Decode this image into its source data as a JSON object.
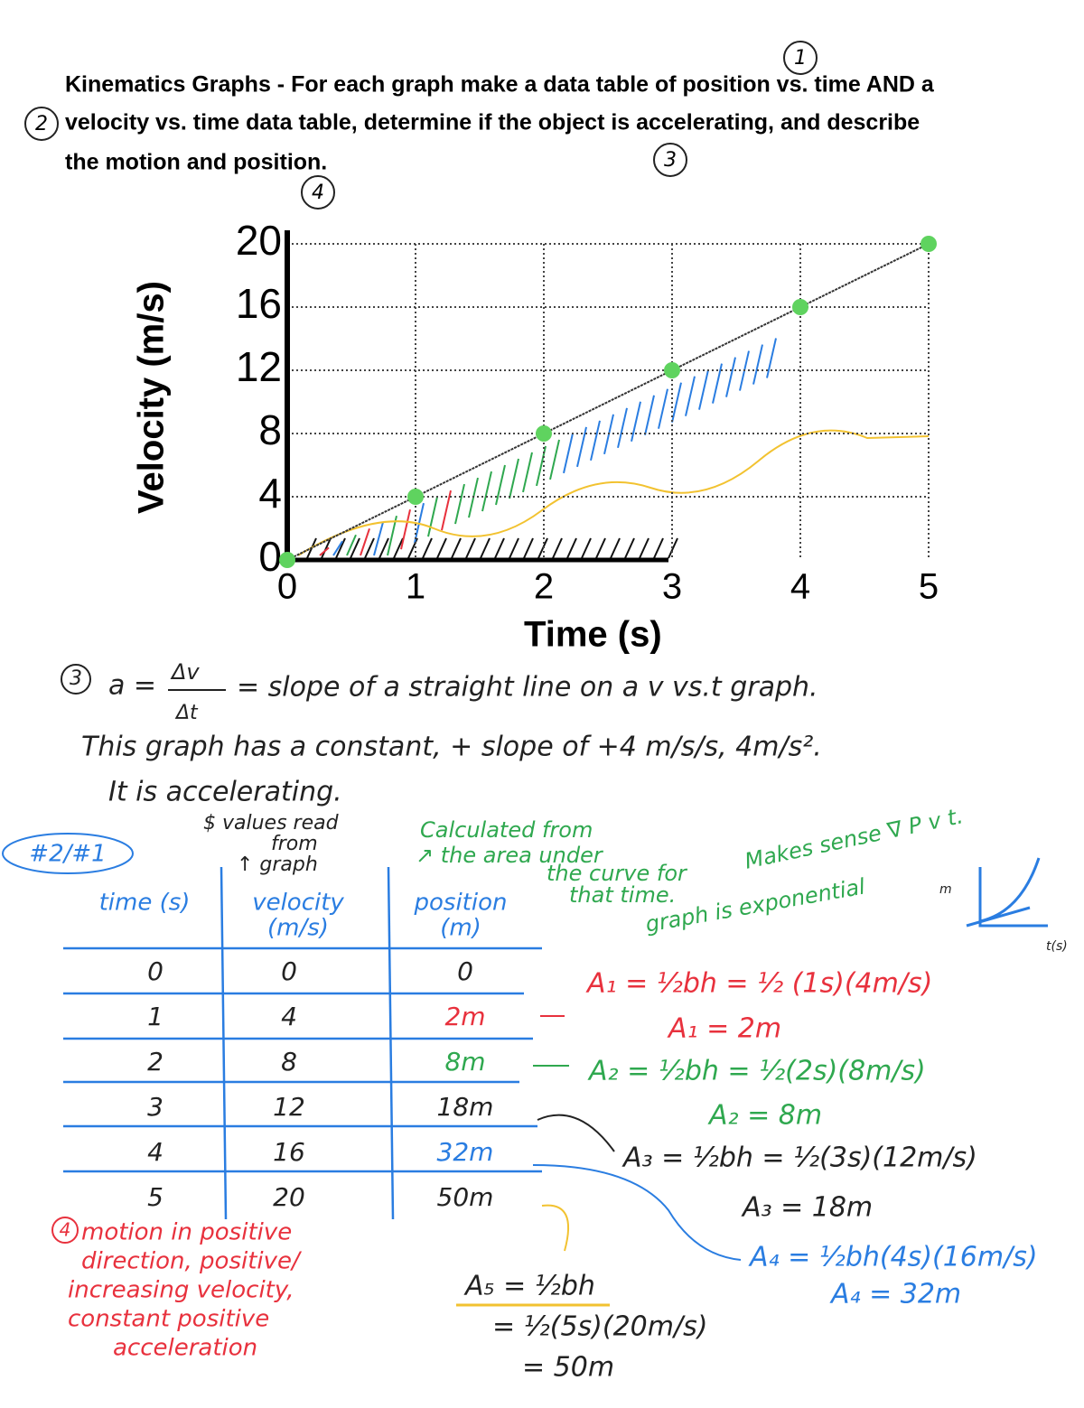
{
  "header": {
    "title_lines": [
      "Kinematics Graphs - For each graph make a data table of position vs. time AND a",
      "velocity vs. time data table, determine if the object is accelerating, and describe",
      "the motion and position."
    ],
    "circled": [
      "1",
      "2",
      "3",
      "4"
    ]
  },
  "chart_data": {
    "type": "line",
    "x_label": "Time (s)",
    "y_label": "Velocity (m/s)",
    "x": [
      0,
      1,
      2,
      3,
      4,
      5
    ],
    "values": [
      0,
      4,
      8,
      12,
      16,
      20
    ],
    "color": "#333333",
    "marker_color": "#5fd35f",
    "xlim": [
      0,
      5
    ],
    "ylim": [
      0,
      20
    ],
    "xticks": [
      0,
      1,
      2,
      3,
      4,
      5
    ],
    "yticks": [
      0,
      4,
      8,
      12,
      16,
      20
    ],
    "grid": true
  },
  "notes": {
    "eq_number": "3",
    "a_eq": "a =",
    "dv": "Δv",
    "dt": "Δt",
    "eq_rest": "= slope of a straight line on a v vs.t graph.",
    "line2": "This graph has a constant, + slope of +4 m/s/s, 4m/s².",
    "line3": "It is accelerating."
  },
  "side": {
    "problem": "#2/#1",
    "values_note": [
      "$ values read",
      "from",
      "↑ graph"
    ],
    "calc_note": [
      "Calculated from",
      "↗ the area under",
      "the curve for",
      "that time."
    ],
    "sense_note": [
      "Makes sense ∇ P v t.",
      "graph is exponential"
    ],
    "sketch_y": "m",
    "sketch_x": "t(s)"
  },
  "table": {
    "headers": [
      [
        "time (s)"
      ],
      [
        "velocity",
        "(m/s)"
      ],
      [
        "position",
        "(m)"
      ]
    ],
    "rows": [
      [
        "0",
        "0",
        "0"
      ],
      [
        "1",
        "4",
        "2m"
      ],
      [
        "2",
        "8",
        "8m"
      ],
      [
        "3",
        "12",
        "18m"
      ],
      [
        "4",
        "16",
        "32m"
      ],
      [
        "5",
        "20",
        "50m"
      ]
    ]
  },
  "areas": [
    "A₁ = ½bh = ½ (1s)(4m/s)",
    "A₁ = 2m",
    "A₂ = ½bh = ½(2s)(8m/s)",
    "A₂ = 8m",
    "A₃ = ½bh = ½(3s)(12m/s)",
    "A₃ = 18m",
    "A₄ = ½bh(4s)(16m/s)",
    "A₄ = 32m",
    "A₅ = ½bh",
    "= ½(5s)(20m/s)",
    "= 50m"
  ],
  "motion": {
    "number": "4",
    "lines": [
      "motion in positive",
      "direction, positive/",
      "increasing velocity,",
      "constant positive",
      "acceleration"
    ]
  }
}
